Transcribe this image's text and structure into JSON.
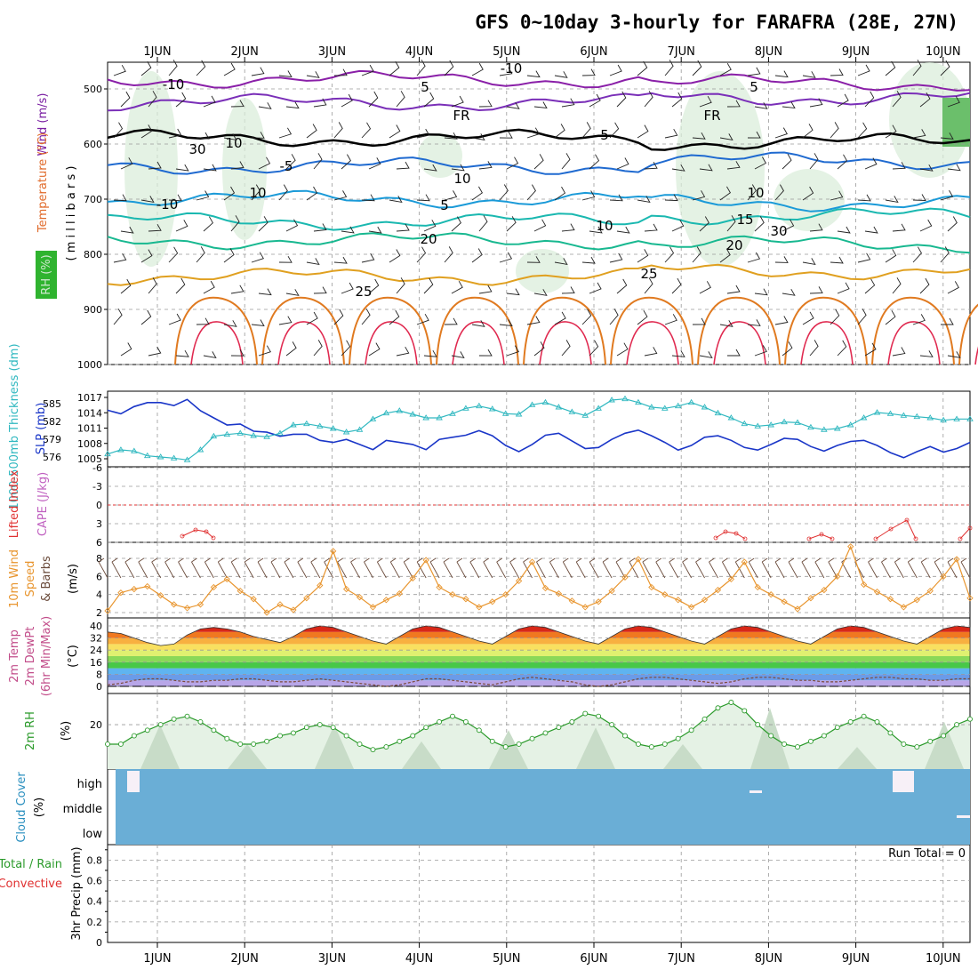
{
  "title": "GFS 0~10day 3-hourly for FARAFRA (28E, 27N)",
  "dates": [
    "1JUN",
    "2JUN",
    "3JUN",
    "4JUN",
    "5JUN",
    "6JUN",
    "7JUN",
    "8JUN",
    "9JUN",
    "10JUN"
  ],
  "colors": {
    "cyan_series": "#30b8c0",
    "blue_series": "#1a36c8",
    "orange_series": "#e8952e",
    "barb": "#6a4a3a",
    "rh_green": "#2a9a2a",
    "cloud_blue": "#6aaed6",
    "lifted_red": "#e03030",
    "cape_violet": "#c060c0"
  },
  "panels": {
    "upper": {
      "labels": {
        "wind": "Wind (m/s)",
        "temperature": "Temperature (°C)",
        "rh": "RH (%)",
        "axis": "( m i l l i b a r s )"
      },
      "yticks": [
        "500",
        "600",
        "700",
        "800",
        "900",
        "1000"
      ],
      "contour_labels": [
        "-10",
        "-10",
        "5",
        "5",
        "FR",
        "FR",
        "5",
        "-5",
        "10",
        "10",
        "-10",
        "15",
        "20",
        "20",
        "25",
        "25",
        "30",
        "10",
        "30",
        "10",
        "10",
        "5"
      ]
    },
    "pressure": {
      "labels": {
        "thickness": "1000-500mb Thickness (dm)",
        "slp": "SLP (mb)"
      },
      "left_ticks": [
        "585",
        "582",
        "579",
        "576"
      ],
      "right_ticks": [
        "1017",
        "1014",
        "1011",
        "1008",
        "1005"
      ]
    },
    "stability": {
      "labels": {
        "lifted": "Lifted Index",
        "cape": "CAPE (J/kg)"
      },
      "ticks": [
        "-6",
        "-3",
        "0",
        "3",
        "6"
      ]
    },
    "wind10m": {
      "labels": {
        "a": "10m Wind",
        "b": "Speed",
        "c": "& Barbs",
        "unit": "(m/s)"
      },
      "ticks": [
        "8",
        "6",
        "4",
        "2"
      ]
    },
    "temp2m": {
      "labels": {
        "a": "2m Temp",
        "b": "2m DewPt",
        "c": "(6hr Min/Max)",
        "unit": "(°C)"
      },
      "ticks": [
        "40",
        "32",
        "24",
        "16",
        "8",
        "0"
      ]
    },
    "rh2m": {
      "labels": {
        "a": "2m RH",
        "unit": "(%)"
      },
      "ticks": [
        "20"
      ]
    },
    "cloud": {
      "labels": {
        "a": "Cloud Cover",
        "unit": "(%)"
      },
      "levels": [
        "high",
        "middle",
        "low"
      ]
    },
    "precip": {
      "labels": {
        "total": "Total / Rain",
        "convective": "Convective",
        "axis": "3hr Precip (mm)",
        "run_total": "Run Total = 0"
      },
      "ticks": [
        "0.8",
        "0.6",
        "0.4",
        "0.2",
        "0"
      ]
    }
  },
  "chart_data": [
    {
      "type": "line",
      "title": "Wind / Temperature / RH (millibars)",
      "ylim": [
        450,
        1000
      ],
      "contours_temperature_C": [
        {
          "level": -10,
          "pressure_mb": 483
        },
        {
          "level": -5,
          "pressure_mb": 525
        },
        {
          "level": 0,
          "pressure_mb": 590
        },
        {
          "level": 5,
          "pressure_mb": 640
        },
        {
          "level": 10,
          "pressure_mb": 700
        },
        {
          "level": 15,
          "pressure_mb": 740
        },
        {
          "level": 20,
          "pressure_mb": 775
        },
        {
          "level": 25,
          "pressure_mb": 840
        }
      ]
    },
    {
      "type": "line",
      "title": "1000-500mb Thickness (dm) / SLP (mb)",
      "series": [
        {
          "name": "SLP (mb)",
          "values": [
            1014.5,
            1013.8,
            1015.2,
            1016,
            1016,
            1015.4,
            1016.6,
            1014.4,
            1013,
            1011.6,
            1011.8,
            1010.4,
            1010.2,
            1009.4,
            1009.8,
            1009.8,
            1008.6,
            1008.2,
            1008.8,
            1007.8,
            1006.8,
            1008.6,
            1008.2,
            1007.8,
            1006.8,
            1008.8,
            1009.2,
            1009.6,
            1010.5,
            1009.5,
            1007.6,
            1006.4,
            1007.8,
            1009.6,
            1010.0,
            1008.5,
            1007.0,
            1007.2,
            1008.8,
            1010,
            1010.6,
            1009.5,
            1008.2,
            1006.7,
            1007.6,
            1009.2,
            1009.5,
            1008.6,
            1007.2,
            1006.7,
            1007.8,
            1009,
            1008.8,
            1007.4,
            1006.5,
            1007.6,
            1008.4,
            1008.6,
            1007.6,
            1006.2,
            1005.2,
            1006.4,
            1007.4,
            1006.3,
            1007.0,
            1008.2
          ]
        },
        {
          "name": "Thickness (dm)",
          "values": [
            576.5,
            577.2,
            577,
            576.2,
            576,
            575.8,
            575.5,
            577.2,
            579.5,
            579.8,
            580,
            579.6,
            579.4,
            580,
            581.4,
            581.6,
            581.2,
            580.8,
            580.2,
            580.6,
            582.4,
            583.4,
            583.8,
            583.2,
            582.6,
            582.6,
            583.3,
            584.2,
            584.6,
            584.1,
            583.3,
            583.2,
            584.8,
            585.2,
            584.4,
            583.6,
            583,
            584.2,
            585.6,
            585.8,
            585.2,
            584.4,
            584.2,
            584.6,
            585.2,
            584.4,
            583.4,
            582.6,
            581.6,
            581.2,
            581.4,
            581.9,
            581.8,
            581,
            580.6,
            580.8,
            581.4,
            582.6,
            583.5,
            583.3,
            583,
            582.8,
            582.6,
            582.2,
            582.4,
            582.4
          ]
        }
      ],
      "ylim_slp": [
        1005,
        1017
      ],
      "ylim_thickness": [
        576,
        587
      ]
    },
    {
      "type": "line",
      "title": "Lifted Index / CAPE (J/kg)",
      "series": [
        {
          "name": "Lifted Index",
          "values": [
            null,
            null,
            null,
            null,
            null,
            null,
            null,
            5.4,
            4.3,
            4.8,
            null,
            null,
            null,
            null,
            null,
            null,
            null,
            null,
            null,
            null,
            null,
            null,
            null,
            null,
            null,
            null,
            null,
            null,
            null,
            null,
            null,
            null,
            null,
            null,
            null,
            null,
            null,
            null,
            null,
            null,
            null,
            null,
            null,
            null,
            null,
            null,
            null,
            null,
            null,
            null,
            null,
            null,
            null,
            null,
            null,
            null,
            null,
            null,
            null,
            null,
            null,
            null,
            null,
            null,
            null,
            5.7
          ]
        }
      ],
      "ylim": [
        6,
        -6
      ]
    },
    {
      "type": "line",
      "title": "10m Wind Speed & Barbs (m/s)",
      "series": [
        {
          "name": "10m Wind Speed",
          "values": [
            2.2,
            4.2,
            4.6,
            4.9,
            3.9,
            2.9,
            2.5,
            2.9,
            4.8,
            5.7,
            4.4,
            3.5,
            2.0,
            2.9,
            2.3,
            3.6,
            5.0,
            8.8,
            4.6,
            3.7,
            2.6,
            3.4,
            4.1,
            5.8,
            7.8,
            4.8,
            4.0,
            3.5,
            2.6,
            3.2,
            4.0,
            5.5,
            7.6,
            4.7,
            4.1,
            3.3,
            2.6,
            3.2,
            4.4,
            5.9,
            7.9,
            4.8,
            4.0,
            3.4,
            2.6,
            3.4,
            4.5,
            5.7,
            7.6,
            4.8,
            4.0,
            3.2,
            2.4,
            3.6,
            4.5,
            6.0,
            9.3,
            5.1,
            4.3,
            3.5,
            2.6,
            3.4,
            4.4,
            6.0,
            7.9,
            3.6
          ]
        }
      ],
      "ylim": [
        1.5,
        9.5
      ]
    },
    {
      "type": "area",
      "title": "2m Temp / 2m DewPt (6hr Min/Max) (°C)",
      "series": [
        {
          "name": "2m Temp",
          "values": [
            36,
            35,
            32,
            29,
            27,
            28,
            34,
            38,
            39,
            38,
            36,
            33,
            31,
            29,
            33,
            38,
            40,
            39,
            36,
            33,
            30,
            28,
            33,
            38,
            40,
            39,
            36,
            33,
            30,
            28,
            33,
            38,
            40,
            39,
            36,
            33,
            30,
            28,
            33,
            38,
            40,
            39,
            36,
            33,
            30,
            28,
            33,
            38,
            40,
            39,
            36,
            33,
            30,
            28,
            33,
            38,
            40,
            39,
            36,
            33,
            30,
            28,
            33,
            38,
            40,
            39
          ]
        },
        {
          "name": "2m DewPt",
          "values": [
            1,
            2,
            4,
            5,
            5,
            4,
            3,
            3,
            4,
            4,
            5,
            5,
            4,
            3,
            3,
            4,
            5,
            4,
            3,
            2,
            1,
            0,
            1,
            3,
            5,
            5,
            4,
            3,
            2,
            1,
            3,
            5,
            6,
            5,
            4,
            3,
            1,
            0,
            1,
            3,
            5,
            6,
            6,
            5,
            4,
            3,
            2,
            3,
            5,
            6,
            6,
            5,
            4,
            4,
            3,
            3,
            4,
            5,
            6,
            6,
            5,
            5,
            4,
            4,
            5,
            5
          ]
        }
      ],
      "ylim": [
        -2,
        42
      ]
    },
    {
      "type": "line",
      "title": "2m RH (%)",
      "series": [
        {
          "name": "2m RH",
          "values": [
            13,
            13,
            16,
            18,
            20,
            22,
            23,
            21,
            18,
            15,
            13,
            13,
            14,
            16,
            17,
            19,
            20,
            19,
            16,
            13,
            11,
            12,
            14,
            16,
            19,
            21,
            23,
            21,
            18,
            14,
            12,
            13,
            15,
            17,
            19,
            21,
            24,
            23,
            20,
            16,
            13,
            12,
            13,
            15,
            18,
            22,
            26,
            28,
            25,
            20,
            16,
            13,
            12,
            14,
            16,
            19,
            21,
            23,
            21,
            17,
            13,
            12,
            14,
            16,
            20,
            22
          ]
        }
      ],
      "ylim": [
        5,
        31
      ]
    },
    {
      "type": "heatmap",
      "title": "Cloud Cover (%)",
      "categories": [
        "high",
        "middle",
        "low"
      ]
    },
    {
      "type": "bar",
      "title": "3hr Precip (mm)",
      "values": [
        0
      ],
      "ylim": [
        0,
        1
      ]
    }
  ]
}
